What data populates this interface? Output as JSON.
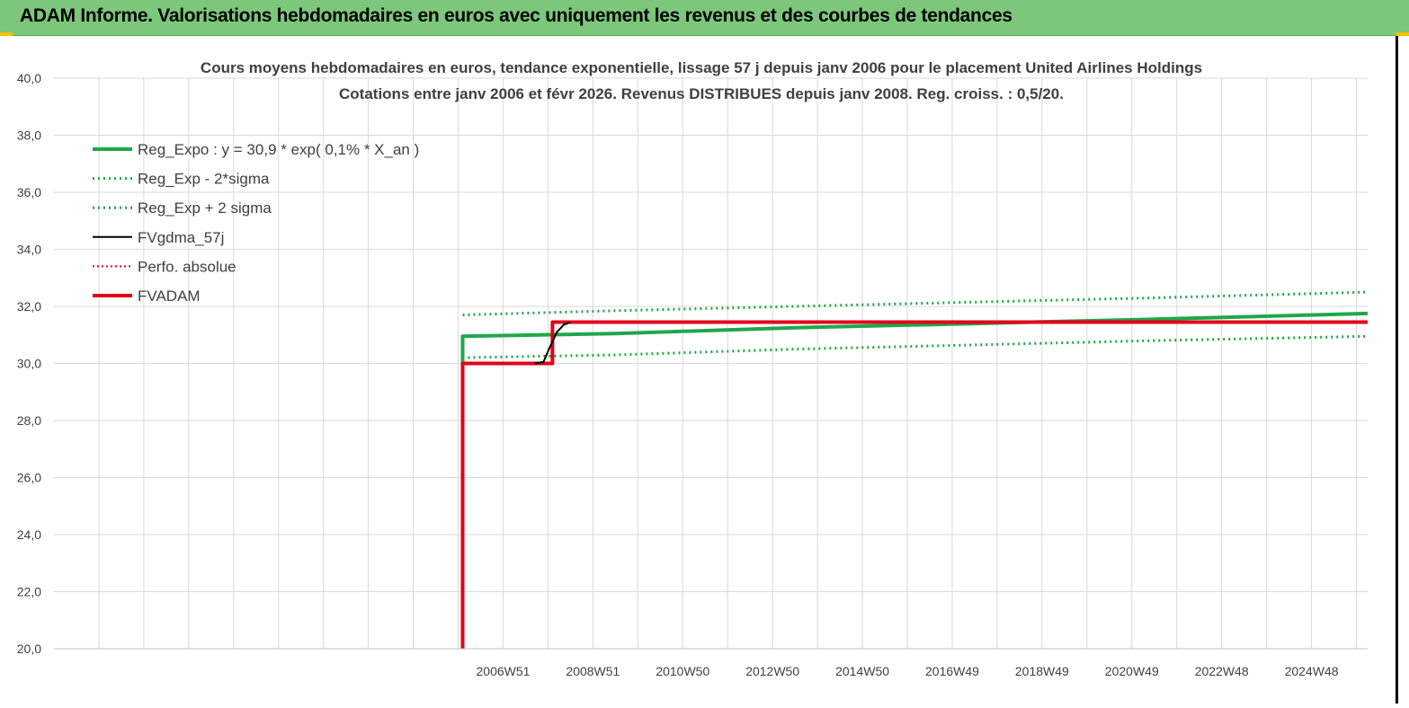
{
  "banner": {
    "title": "ADAM Informe. Valorisations hebdomadaires en euros avec uniquement les revenus et des courbes de tendances"
  },
  "colors": {
    "banner_bg": "#7cc77a",
    "green": "#1fa84a",
    "black": "#000000",
    "red": "#e2001a",
    "grid": "#d9d9d9"
  },
  "chart_data": {
    "type": "line",
    "title": "Cours moyens hebdomadaires en euros, tendance exponentielle, lissage 57 j depuis janv 2006 pour le placement United Airlines Holdings",
    "subtitle": "Cotations entre janv 2006 et févr 2026. Revenus DISTRIBUES depuis janv 2008. Reg. croiss. : 0,5/20.",
    "ylim": [
      20,
      40
    ],
    "yticks": [
      "20,0",
      "22,0",
      "24,0",
      "26,0",
      "28,0",
      "30,0",
      "32,0",
      "34,0",
      "36,0",
      "38,0",
      "40,0"
    ],
    "xlim": [
      1997.5,
      2026.75
    ],
    "xticks": [
      {
        "label": "2006W51",
        "x": 2007.5
      },
      {
        "label": "2008W51",
        "x": 2009.5
      },
      {
        "label": "2010W50",
        "x": 2011.5
      },
      {
        "label": "2012W50",
        "x": 2013.5
      },
      {
        "label": "2014W50",
        "x": 2015.5
      },
      {
        "label": "2016W49",
        "x": 2017.5
      },
      {
        "label": "2018W49",
        "x": 2019.5
      },
      {
        "label": "2020W49",
        "x": 2021.5
      },
      {
        "label": "2022W48",
        "x": 2023.5
      },
      {
        "label": "2024W48",
        "x": 2025.5
      }
    ],
    "legend_position": "top-left",
    "series": [
      {
        "name": "Reg_Expo : y = 30,9 * exp( 0,1% *  X_an )",
        "style": "solid-thick",
        "color": "#1fa84a",
        "points": [
          [
            2006.6,
            30.0
          ],
          [
            2006.6,
            30.95
          ],
          [
            2010,
            31.05
          ],
          [
            2014,
            31.25
          ],
          [
            2018,
            31.4
          ],
          [
            2022,
            31.55
          ],
          [
            2026.75,
            31.75
          ]
        ]
      },
      {
        "name": "Reg_Exp - 2*sigma",
        "style": "dotted",
        "color": "#1fa84a",
        "points": [
          [
            2006.6,
            30.2
          ],
          [
            2010,
            30.3
          ],
          [
            2014,
            30.5
          ],
          [
            2018,
            30.65
          ],
          [
            2022,
            30.8
          ],
          [
            2026.75,
            30.95
          ]
        ]
      },
      {
        "name": "Reg_Exp + 2 sigma",
        "style": "dotted",
        "color": "#1fa84a",
        "points": [
          [
            2006.6,
            31.7
          ],
          [
            2010,
            31.85
          ],
          [
            2014,
            32.0
          ],
          [
            2018,
            32.15
          ],
          [
            2022,
            32.3
          ],
          [
            2026.75,
            32.5
          ]
        ]
      },
      {
        "name": "FVgdma_57j",
        "style": "solid-thin",
        "color": "#000000",
        "points": [
          [
            2008.2,
            30.0
          ],
          [
            2008.4,
            30.05
          ],
          [
            2008.55,
            30.6
          ],
          [
            2008.7,
            31.1
          ],
          [
            2008.85,
            31.35
          ],
          [
            2009.0,
            31.45
          ]
        ]
      },
      {
        "name": "Perfo. absolue",
        "style": "dotted-thin",
        "color": "#e2001a",
        "points": []
      },
      {
        "name": "FVADAM",
        "style": "solid-thick",
        "color": "#e2001a",
        "points": [
          [
            2006.6,
            20.0
          ],
          [
            2006.6,
            30.0
          ],
          [
            2008.6,
            30.0
          ],
          [
            2008.6,
            31.45
          ],
          [
            2026.75,
            31.45
          ]
        ]
      }
    ]
  }
}
